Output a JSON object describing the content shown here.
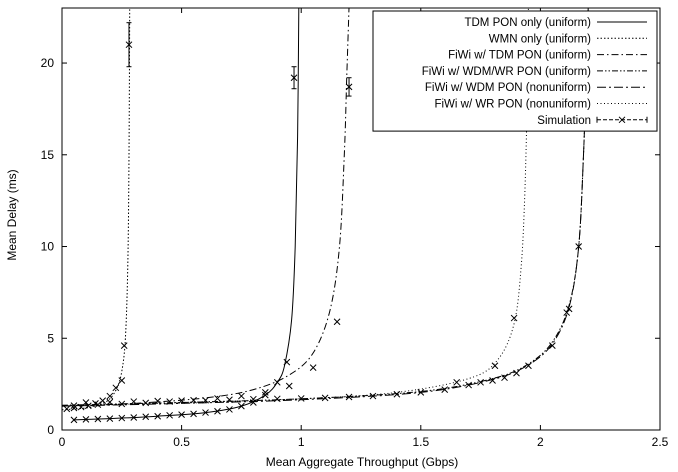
{
  "chart_data": {
    "type": "line",
    "xlabel": "Mean Aggregate Throughput (Gbps)",
    "ylabel": "Mean Delay (ms)",
    "xlim": [
      0,
      2.5
    ],
    "ylim": [
      0,
      23
    ],
    "xticks": [
      "0",
      "0.5",
      "1",
      "1.5",
      "2",
      "2.5"
    ],
    "yticks": [
      "0",
      "5",
      "10",
      "15",
      "20"
    ],
    "xtick_values": [
      0,
      0.5,
      1,
      1.5,
      2,
      2.5
    ],
    "ytick_values": [
      0,
      5,
      10,
      15,
      20
    ],
    "grid": false,
    "legend_position": "top-right",
    "series": [
      {
        "name": "TDM PON only (uniform)",
        "style": "solid",
        "points": [
          [
            0.05,
            0.55
          ],
          [
            0.2,
            0.62
          ],
          [
            0.4,
            0.75
          ],
          [
            0.6,
            0.95
          ],
          [
            0.75,
            1.3
          ],
          [
            0.85,
            1.9
          ],
          [
            0.9,
            2.6
          ],
          [
            0.93,
            3.5
          ],
          [
            0.96,
            6.0
          ],
          [
            0.975,
            10.0
          ],
          [
            0.985,
            16.0
          ],
          [
            0.99,
            23.0
          ]
        ]
      },
      {
        "name": "WMN only (uniform)",
        "style": "dot",
        "points": [
          [
            0.0,
            1.1
          ],
          [
            0.1,
            1.2
          ],
          [
            0.16,
            1.4
          ],
          [
            0.2,
            1.7
          ],
          [
            0.23,
            2.3
          ],
          [
            0.25,
            3.2
          ],
          [
            0.265,
            5.0
          ],
          [
            0.275,
            9.0
          ],
          [
            0.28,
            15.0
          ],
          [
            0.283,
            23.0
          ]
        ]
      },
      {
        "name": "FiWi w/ TDM PON (uniform)",
        "style": "dashdot",
        "points": [
          [
            0.0,
            1.3
          ],
          [
            0.3,
            1.45
          ],
          [
            0.6,
            1.75
          ],
          [
            0.8,
            2.2
          ],
          [
            0.95,
            3.0
          ],
          [
            1.05,
            4.2
          ],
          [
            1.12,
            6.5
          ],
          [
            1.16,
            10.0
          ],
          [
            1.18,
            15.0
          ],
          [
            1.19,
            19.0
          ],
          [
            1.2,
            23.0
          ]
        ]
      },
      {
        "name": "FiWi w/ WDM/WR PON (uniform)",
        "style": "dashdotdot",
        "points": [
          [
            0.0,
            1.35
          ],
          [
            0.5,
            1.5
          ],
          [
            1.0,
            1.7
          ],
          [
            1.5,
            2.1
          ],
          [
            1.8,
            2.8
          ],
          [
            1.95,
            3.6
          ],
          [
            2.05,
            4.8
          ],
          [
            2.12,
            6.8
          ],
          [
            2.16,
            10.0
          ],
          [
            2.18,
            15.0
          ],
          [
            2.19,
            19.0
          ],
          [
            2.2,
            23.0
          ]
        ]
      },
      {
        "name": "FiWi w/ WDM PON (nonuniform)",
        "style": "longdashdot",
        "points": [
          [
            0.0,
            1.3
          ],
          [
            0.5,
            1.45
          ],
          [
            1.0,
            1.65
          ],
          [
            1.5,
            2.05
          ],
          [
            1.8,
            2.75
          ],
          [
            1.95,
            3.55
          ],
          [
            2.05,
            4.7
          ],
          [
            2.12,
            6.7
          ],
          [
            2.16,
            10.0
          ],
          [
            2.18,
            15.0
          ],
          [
            2.19,
            19.0
          ],
          [
            2.2,
            23.0
          ]
        ]
      },
      {
        "name": "FiWi w/ WR PON (nonuniform)",
        "style": "finedot",
        "points": [
          [
            0.0,
            1.3
          ],
          [
            0.5,
            1.5
          ],
          [
            1.0,
            1.7
          ],
          [
            1.4,
            2.05
          ],
          [
            1.7,
            2.8
          ],
          [
            1.82,
            3.8
          ],
          [
            1.89,
            5.8
          ],
          [
            1.92,
            9.0
          ],
          [
            1.935,
            13.0
          ],
          [
            1.945,
            18.0
          ],
          [
            1.95,
            23.0
          ]
        ]
      }
    ],
    "simulation": {
      "name": "Simulation",
      "points": [
        [
          0.02,
          1.15
        ],
        [
          0.05,
          1.2
        ],
        [
          0.08,
          1.25
        ],
        [
          0.11,
          1.32
        ],
        [
          0.14,
          1.45
        ],
        [
          0.17,
          1.6
        ],
        [
          0.2,
          1.85
        ],
        [
          0.225,
          2.3
        ],
        [
          0.25,
          2.7
        ],
        [
          0.26,
          4.6
        ],
        [
          0.28,
          21.0
        ],
        [
          0.05,
          0.55
        ],
        [
          0.1,
          0.58
        ],
        [
          0.15,
          0.6
        ],
        [
          0.2,
          0.62
        ],
        [
          0.25,
          0.65
        ],
        [
          0.3,
          0.68
        ],
        [
          0.35,
          0.72
        ],
        [
          0.4,
          0.75
        ],
        [
          0.45,
          0.8
        ],
        [
          0.5,
          0.84
        ],
        [
          0.55,
          0.88
        ],
        [
          0.6,
          0.95
        ],
        [
          0.65,
          1.02
        ],
        [
          0.7,
          1.12
        ],
        [
          0.75,
          1.3
        ],
        [
          0.8,
          1.5
        ],
        [
          0.85,
          1.9
        ],
        [
          0.9,
          2.6
        ],
        [
          0.94,
          3.7
        ],
        [
          0.97,
          19.2
        ],
        [
          0.05,
          1.33
        ],
        [
          0.15,
          1.38
        ],
        [
          0.25,
          1.42
        ],
        [
          0.35,
          1.48
        ],
        [
          0.45,
          1.55
        ],
        [
          0.55,
          1.62
        ],
        [
          0.65,
          1.72
        ],
        [
          0.75,
          1.85
        ],
        [
          0.85,
          2.05
        ],
        [
          0.95,
          2.4
        ],
        [
          1.05,
          3.4
        ],
        [
          1.15,
          5.9
        ],
        [
          1.2,
          18.7
        ],
        [
          0.1,
          1.5
        ],
        [
          0.2,
          1.52
        ],
        [
          0.3,
          1.55
        ],
        [
          0.4,
          1.58
        ],
        [
          0.5,
          1.6
        ],
        [
          0.6,
          1.62
        ],
        [
          0.7,
          1.65
        ],
        [
          0.8,
          1.68
        ],
        [
          0.9,
          1.7
        ],
        [
          1.0,
          1.72
        ],
        [
          1.1,
          1.75
        ],
        [
          1.2,
          1.8
        ],
        [
          1.3,
          1.85
        ],
        [
          1.4,
          1.95
        ],
        [
          1.5,
          2.05
        ],
        [
          1.6,
          2.2
        ],
        [
          1.7,
          2.45
        ],
        [
          1.75,
          2.6
        ],
        [
          1.8,
          2.7
        ],
        [
          1.85,
          2.85
        ],
        [
          1.9,
          3.1
        ],
        [
          1.95,
          3.5
        ],
        [
          2.05,
          4.6
        ],
        [
          2.11,
          6.4
        ],
        [
          2.12,
          6.6
        ],
        [
          2.16,
          10.0
        ],
        [
          1.65,
          2.6
        ],
        [
          1.81,
          3.5
        ],
        [
          1.89,
          6.1
        ]
      ]
    },
    "error_bars": [
      {
        "x": 0.28,
        "y_low": 19.8,
        "y_high": 22.2
      },
      {
        "x": 0.97,
        "y_low": 18.6,
        "y_high": 19.8
      },
      {
        "x": 1.2,
        "y_low": 18.2,
        "y_high": 19.2
      }
    ]
  }
}
